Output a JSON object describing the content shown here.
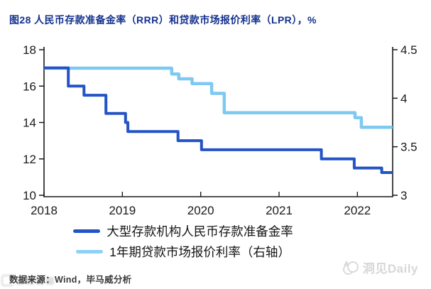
{
  "title": "图28 人民币存款准备金率（RRR）和贷款市场报价利率（LPR），%",
  "source": "数据来源：Wind，毕马威分析",
  "watermark_right": "洞见Daily",
  "colors": {
    "title_text": "#14328F",
    "rrr_line": "#2453C6",
    "lpr_line": "#7EC9F2",
    "axis": "#1a1a1a",
    "source_text": "#3a3a3a",
    "watermark": "#d7d7d7"
  },
  "chart_data": {
    "type": "line",
    "subtype": "step",
    "title": "人民币存款准备金率（RRR）和贷款市场报价利率（LPR），%",
    "grid": false,
    "legend_position": "bottom",
    "x_axis": {
      "range": [
        2018.0,
        2022.45
      ],
      "ticks": [
        2018,
        2019,
        2020,
        2021,
        2022
      ],
      "tick_labels": [
        "2018",
        "2019",
        "2020",
        "2021",
        "2022"
      ]
    },
    "left_axis": {
      "range": [
        10,
        18
      ],
      "ticks": [
        18,
        16,
        14,
        12,
        10
      ],
      "tick_labels": [
        "18",
        "16",
        "14",
        "12",
        "10"
      ]
    },
    "right_axis": {
      "range": [
        3,
        4.5
      ],
      "ticks": [
        4.5,
        4,
        3.5,
        3
      ],
      "tick_labels": [
        "4.5",
        "4",
        "3.5",
        "3"
      ]
    },
    "series": [
      {
        "id": "rrr",
        "name": "大型存款机构人民币存款准备金率",
        "axis": "left",
        "color": "#2453C6",
        "points": [
          [
            2018.0,
            17.0
          ],
          [
            2018.31,
            16.0
          ],
          [
            2018.51,
            15.5
          ],
          [
            2018.79,
            14.5
          ],
          [
            2019.04,
            14.0
          ],
          [
            2019.07,
            13.5
          ],
          [
            2019.71,
            13.0
          ],
          [
            2020.01,
            12.5
          ],
          [
            2021.54,
            12.0
          ],
          [
            2021.96,
            11.5
          ],
          [
            2022.31,
            11.25
          ],
          [
            2022.45,
            11.25
          ]
        ]
      },
      {
        "id": "lpr",
        "name": "1年期贷款市场报价利率（右轴）",
        "axis": "right",
        "color": "#7EC9F2",
        "points": [
          [
            2018.0,
            4.31
          ],
          [
            2019.63,
            4.25
          ],
          [
            2019.72,
            4.2
          ],
          [
            2019.89,
            4.15
          ],
          [
            2020.14,
            4.05
          ],
          [
            2020.3,
            3.85
          ],
          [
            2021.97,
            3.8
          ],
          [
            2022.05,
            3.7
          ],
          [
            2022.45,
            3.7
          ]
        ]
      }
    ]
  }
}
